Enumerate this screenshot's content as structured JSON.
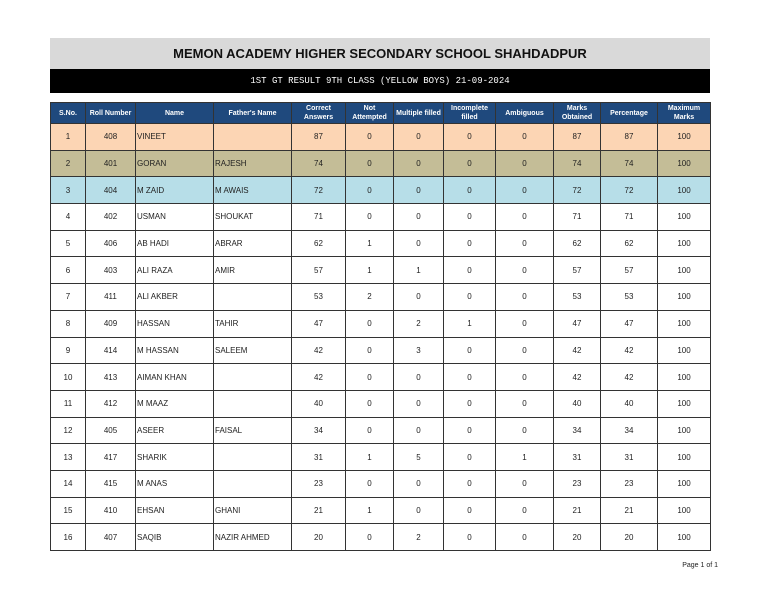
{
  "title": "MEMON ACADEMY HIGHER SECONDARY SCHOOL SHAHDADPUR",
  "subtitle": "1ST GT RESULT 9TH CLASS  (YELLOW BOYS) 21-09-2024",
  "colors": {
    "header_bg": "#1f497d",
    "rank1": "#fcd5b4",
    "rank2": "#c4bd97",
    "rank3": "#b7dee8"
  },
  "columns": [
    "S.No.",
    "Roll Number",
    "Name",
    "Father's Name",
    "Correct Answers",
    "Not Attempted",
    "Multiple filled",
    "Incomplete filled",
    "Ambiguous",
    "Marks Obtained",
    "Percentage",
    "Maximum Marks"
  ],
  "rows": [
    [
      "1",
      "408",
      "VINEET",
      "",
      "87",
      "0",
      "0",
      "0",
      "0",
      "87",
      "87",
      "100"
    ],
    [
      "2",
      "401",
      "GORAN",
      "RAJESH",
      "74",
      "0",
      "0",
      "0",
      "0",
      "74",
      "74",
      "100"
    ],
    [
      "3",
      "404",
      "M ZAID",
      "M AWAIS",
      "72",
      "0",
      "0",
      "0",
      "0",
      "72",
      "72",
      "100"
    ],
    [
      "4",
      "402",
      "USMAN",
      "SHOUKAT",
      "71",
      "0",
      "0",
      "0",
      "0",
      "71",
      "71",
      "100"
    ],
    [
      "5",
      "406",
      "AB HADI",
      "ABRAR",
      "62",
      "1",
      "0",
      "0",
      "0",
      "62",
      "62",
      "100"
    ],
    [
      "6",
      "403",
      "ALI RAZA",
      "AMIR",
      "57",
      "1",
      "1",
      "0",
      "0",
      "57",
      "57",
      "100"
    ],
    [
      "7",
      "411",
      "ALI AKBER",
      "",
      "53",
      "2",
      "0",
      "0",
      "0",
      "53",
      "53",
      "100"
    ],
    [
      "8",
      "409",
      "HASSAN",
      "TAHIR",
      "47",
      "0",
      "2",
      "1",
      "0",
      "47",
      "47",
      "100"
    ],
    [
      "9",
      "414",
      "M HASSAN",
      "SALEEM",
      "42",
      "0",
      "3",
      "0",
      "0",
      "42",
      "42",
      "100"
    ],
    [
      "10",
      "413",
      "AIMAN KHAN",
      "",
      "42",
      "0",
      "0",
      "0",
      "0",
      "42",
      "42",
      "100"
    ],
    [
      "11",
      "412",
      "M MAAZ",
      "",
      "40",
      "0",
      "0",
      "0",
      "0",
      "40",
      "40",
      "100"
    ],
    [
      "12",
      "405",
      "ASEER",
      "FAISAL",
      "34",
      "0",
      "0",
      "0",
      "0",
      "34",
      "34",
      "100"
    ],
    [
      "13",
      "417",
      "SHARIK",
      "",
      "31",
      "1",
      "5",
      "0",
      "1",
      "31",
      "31",
      "100"
    ],
    [
      "14",
      "415",
      "M ANAS",
      "",
      "23",
      "0",
      "0",
      "0",
      "0",
      "23",
      "23",
      "100"
    ],
    [
      "15",
      "410",
      "EHSAN",
      "GHANI",
      "21",
      "1",
      "0",
      "0",
      "0",
      "21",
      "21",
      "100"
    ],
    [
      "16",
      "407",
      "SAQIB",
      "NAZIR AHMED",
      "20",
      "0",
      "2",
      "0",
      "0",
      "20",
      "20",
      "100"
    ]
  ],
  "footer": "Page 1 of 1"
}
